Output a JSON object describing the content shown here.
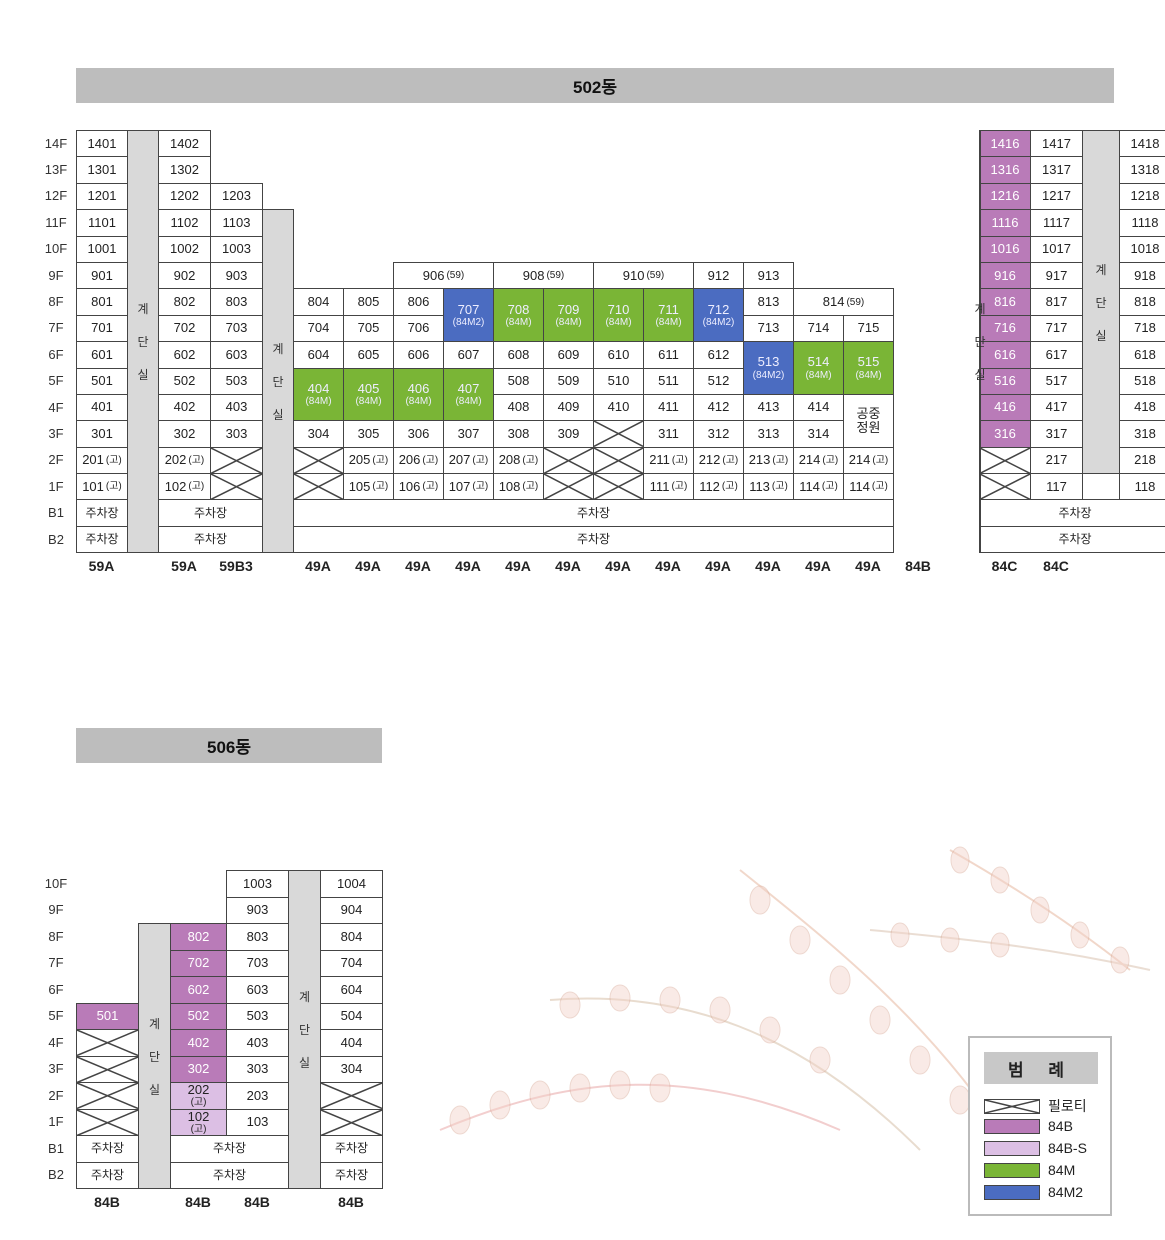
{
  "buildings": [
    {
      "id": "502",
      "title": "502동",
      "floors": [
        "14F",
        "13F",
        "12F",
        "11F",
        "10F",
        "9F",
        "8F",
        "7F",
        "6F",
        "5F",
        "4F",
        "3F",
        "2F",
        "1F",
        "B1",
        "B2"
      ],
      "types": [
        "59A",
        "59A",
        "59B3",
        "49A",
        "49A",
        "49A",
        "49A",
        "49A",
        "49A",
        "49A",
        "49A",
        "49A",
        "49A",
        "49A",
        "49A",
        "84B",
        "84C",
        "84C"
      ],
      "stair_label": [
        "계",
        "단",
        "실"
      ],
      "cells": [
        {
          "t": "1401",
          "g": "1/2/2"
        },
        {
          "t": "1402",
          "g": "1/4/2"
        },
        {
          "t": "1416",
          "g": "1/27/2",
          "c": "84B"
        },
        {
          "t": "1417",
          "g": "1/28/2"
        },
        {
          "t": "1418",
          "g": "1/30/2"
        },
        {
          "t": "1301",
          "g": "2/2/3"
        },
        {
          "t": "1302",
          "g": "2/4/3"
        },
        {
          "t": "1316",
          "g": "2/27/3",
          "c": "84B"
        },
        {
          "t": "1317",
          "g": "2/28/3"
        },
        {
          "t": "1318",
          "g": "2/30/3"
        },
        {
          "t": "1201",
          "g": "3/2/4"
        },
        {
          "t": "1202",
          "g": "3/4/4"
        },
        {
          "t": "1203",
          "g": "3/5/4"
        },
        {
          "t": "1216",
          "g": "3/27/4",
          "c": "84B"
        },
        {
          "t": "1217",
          "g": "3/28/4"
        },
        {
          "t": "1218",
          "g": "3/30/4"
        },
        {
          "t": "1101",
          "g": "4/2/5"
        },
        {
          "t": "1102",
          "g": "4/4/5"
        },
        {
          "t": "1103",
          "g": "4/5/5"
        },
        {
          "t": "1116",
          "g": "4/27/5",
          "c": "84B"
        },
        {
          "t": "1117",
          "g": "4/28/5"
        },
        {
          "t": "1118",
          "g": "4/30/5"
        },
        {
          "t": "1001",
          "g": "5/2/6"
        },
        {
          "t": "1002",
          "g": "5/4/6"
        },
        {
          "t": "1003",
          "g": "5/5/6"
        },
        {
          "t": "1016",
          "g": "5/27/6",
          "c": "84B"
        },
        {
          "t": "1017",
          "g": "5/28/6"
        },
        {
          "t": "1018",
          "g": "5/30/6"
        },
        {
          "t": "901",
          "g": "6/2/7"
        },
        {
          "t": "902",
          "g": "6/4/7"
        },
        {
          "t": "903",
          "g": "6/5/7"
        },
        {
          "t": "906",
          "s": "(59)",
          "g": "6/9/7/11"
        },
        {
          "t": "908",
          "s": "(59)",
          "g": "6/11/7/13"
        },
        {
          "t": "910",
          "s": "(59)",
          "g": "6/13/7/15"
        },
        {
          "t": "912",
          "g": "6/15/7"
        },
        {
          "t": "913",
          "g": "6/16/7"
        },
        {
          "t": "916",
          "g": "6/27/7",
          "c": "84B"
        },
        {
          "t": "917",
          "g": "6/28/7"
        },
        {
          "t": "918",
          "g": "6/30/7"
        },
        {
          "t": "801",
          "g": "7/2/8"
        },
        {
          "t": "802",
          "g": "7/4/8"
        },
        {
          "t": "803",
          "g": "7/5/8"
        },
        {
          "t": "804",
          "g": "7/7/8"
        },
        {
          "t": "805",
          "g": "7/8/8"
        },
        {
          "t": "806",
          "g": "7/9/8"
        },
        {
          "t": "707",
          "s": "(84M2)",
          "g": "7/10/9",
          "c": "84M2"
        },
        {
          "t": "708",
          "s": "(84M)",
          "g": "7/11/9",
          "c": "84M"
        },
        {
          "t": "709",
          "s": "(84M)",
          "g": "7/12/9",
          "c": "84M"
        },
        {
          "t": "710",
          "s": "(84M)",
          "g": "7/13/9",
          "c": "84M"
        },
        {
          "t": "711",
          "s": "(84M)",
          "g": "7/14/9",
          "c": "84M"
        },
        {
          "t": "712",
          "s": "(84M2)",
          "g": "7/15/9",
          "c": "84M2"
        },
        {
          "t": "813",
          "g": "7/16/8"
        },
        {
          "t": "814",
          "s": "(59)",
          "g": "7/17/8/19"
        },
        {
          "t": "816",
          "g": "7/27/8",
          "c": "84B"
        },
        {
          "t": "817",
          "g": "7/28/8"
        },
        {
          "t": "818",
          "g": "7/30/8"
        },
        {
          "t": "701",
          "g": "8/2/9"
        },
        {
          "t": "702",
          "g": "8/4/9"
        },
        {
          "t": "703",
          "g": "8/5/9"
        },
        {
          "t": "704",
          "g": "8/7/9"
        },
        {
          "t": "705",
          "g": "8/8/9"
        },
        {
          "t": "706",
          "g": "8/9/9"
        },
        {
          "t": "713",
          "g": "8/16/9"
        },
        {
          "t": "714",
          "g": "8/17/9"
        },
        {
          "t": "715",
          "g": "8/18/9"
        },
        {
          "t": "716",
          "g": "8/27/9",
          "c": "84B"
        },
        {
          "t": "717",
          "g": "8/28/9"
        },
        {
          "t": "718",
          "g": "8/30/9"
        },
        {
          "t": "601",
          "g": "9/2/10"
        },
        {
          "t": "602",
          "g": "9/4/10"
        },
        {
          "t": "603",
          "g": "9/5/10"
        },
        {
          "t": "604",
          "g": "9/7/10"
        },
        {
          "t": "605",
          "g": "9/8/10"
        },
        {
          "t": "606",
          "g": "9/9/10"
        },
        {
          "t": "607",
          "g": "9/10/10"
        },
        {
          "t": "608",
          "g": "9/11/10"
        },
        {
          "t": "609",
          "g": "9/12/10"
        },
        {
          "t": "610",
          "g": "9/13/10"
        },
        {
          "t": "611",
          "g": "9/14/10"
        },
        {
          "t": "612",
          "g": "9/15/10"
        },
        {
          "t": "513",
          "s": "(84M2)",
          "g": "9/16/11",
          "c": "84M2"
        },
        {
          "t": "514",
          "s": "(84M)",
          "g": "9/17/11",
          "c": "84M"
        },
        {
          "t": "515",
          "s": "(84M)",
          "g": "9/18/11",
          "c": "84M"
        },
        {
          "t": "616",
          "g": "9/27/10",
          "c": "84B"
        },
        {
          "t": "617",
          "g": "9/28/10"
        },
        {
          "t": "618",
          "g": "9/30/10"
        },
        {
          "t": "501",
          "g": "10/2/11"
        },
        {
          "t": "502",
          "g": "10/4/11"
        },
        {
          "t": "503",
          "g": "10/5/11"
        },
        {
          "t": "404",
          "s": "(84M)",
          "g": "10/7/12",
          "c": "84M"
        },
        {
          "t": "405",
          "s": "(84M)",
          "g": "10/8/12",
          "c": "84M"
        },
        {
          "t": "406",
          "s": "(84M)",
          "g": "10/9/12",
          "c": "84M"
        },
        {
          "t": "407",
          "s": "(84M)",
          "g": "10/10/12",
          "c": "84M"
        },
        {
          "t": "508",
          "g": "10/11/11"
        },
        {
          "t": "509",
          "g": "10/12/11"
        },
        {
          "t": "510",
          "g": "10/13/11"
        },
        {
          "t": "511",
          "g": "10/14/11"
        },
        {
          "t": "512",
          "g": "10/15/11"
        },
        {
          "t": "516",
          "g": "10/27/11",
          "c": "84B"
        },
        {
          "t": "517",
          "g": "10/28/11"
        },
        {
          "t": "518",
          "g": "10/30/11"
        },
        {
          "t": "401",
          "g": "11/2/12"
        },
        {
          "t": "402",
          "g": "11/4/12"
        },
        {
          "t": "403",
          "g": "11/5/12"
        },
        {
          "t": "408",
          "g": "11/11/12"
        },
        {
          "t": "409",
          "g": "11/12/12"
        },
        {
          "t": "410",
          "g": "11/13/12"
        },
        {
          "t": "411",
          "g": "11/14/12"
        },
        {
          "t": "412",
          "g": "11/15/12"
        },
        {
          "t": "413",
          "g": "11/16/12"
        },
        {
          "t": "414",
          "g": "11/17/12"
        },
        {
          "t": "공중",
          "s2": "정원",
          "g": "11/18/13"
        },
        {
          "t": "416",
          "g": "11/27/12",
          "c": "84B"
        },
        {
          "t": "417",
          "g": "11/28/12"
        },
        {
          "t": "418",
          "g": "11/30/12"
        },
        {
          "t": "301",
          "g": "12/2/13"
        },
        {
          "t": "302",
          "g": "12/4/13"
        },
        {
          "t": "303",
          "g": "12/5/13"
        },
        {
          "t": "304",
          "g": "12/7/13"
        },
        {
          "t": "305",
          "g": "12/8/13"
        },
        {
          "t": "306",
          "g": "12/9/13"
        },
        {
          "t": "307",
          "g": "12/10/13"
        },
        {
          "t": "308",
          "g": "12/11/13"
        },
        {
          "t": "309",
          "g": "12/12/13"
        },
        {
          "p": true,
          "g": "12/13/13"
        },
        {
          "t": "311",
          "g": "12/14/13"
        },
        {
          "t": "312",
          "g": "12/15/13"
        },
        {
          "t": "313",
          "g": "12/16/13"
        },
        {
          "t": "314",
          "g": "12/17/13"
        },
        {
          "t": "316",
          "g": "12/27/13",
          "c": "84B"
        },
        {
          "t": "317",
          "g": "12/28/13"
        },
        {
          "t": "318",
          "g": "12/30/13"
        },
        {
          "t": "201",
          "s": "(고)",
          "g": "13/2/14"
        },
        {
          "t": "202",
          "s": "(고)",
          "g": "13/4/14"
        },
        {
          "p": true,
          "g": "13/5/14"
        },
        {
          "p": true,
          "g": "13/7/14"
        },
        {
          "t": "205",
          "s": "(고)",
          "g": "13/8/14"
        },
        {
          "t": "206",
          "s": "(고)",
          "g": "13/9/14"
        },
        {
          "t": "207",
          "s": "(고)",
          "g": "13/10/14"
        },
        {
          "t": "208",
          "s": "(고)",
          "g": "13/11/14"
        },
        {
          "p": true,
          "g": "13/12/14"
        },
        {
          "p": true,
          "g": "13/13/14"
        },
        {
          "t": "211",
          "s": "(고)",
          "g": "13/14/14"
        },
        {
          "t": "212",
          "s": "(고)",
          "g": "13/15/14"
        },
        {
          "t": "213",
          "s": "(고)",
          "g": "13/16/14"
        },
        {
          "t": "214",
          "s": "(고)",
          "g": "13/17/14"
        },
        {
          "t": "214",
          "s": "(고)",
          "g": "13/18/14"
        },
        {
          "p": true,
          "g": "13/27/14"
        },
        {
          "t": "217",
          "g": "13/28/14"
        },
        {
          "t": "218",
          "g": "13/30/14"
        },
        {
          "t": "101",
          "s": "(고)",
          "g": "14/2/15"
        },
        {
          "t": "102",
          "s": "(고)",
          "g": "14/4/15"
        },
        {
          "p": true,
          "g": "14/5/15"
        },
        {
          "p": true,
          "g": "14/7/15"
        },
        {
          "t": "105",
          "s": "(고)",
          "g": "14/8/15"
        },
        {
          "t": "106",
          "s": "(고)",
          "g": "14/9/15"
        },
        {
          "t": "107",
          "s": "(고)",
          "g": "14/10/15"
        },
        {
          "t": "108",
          "s": "(고)",
          "g": "14/11/15"
        },
        {
          "p": true,
          "g": "14/12/15"
        },
        {
          "p": true,
          "g": "14/13/15"
        },
        {
          "t": "111",
          "s": "(고)",
          "g": "14/14/15"
        },
        {
          "t": "112",
          "s": "(고)",
          "g": "14/15/15"
        },
        {
          "t": "113",
          "s": "(고)",
          "g": "14/16/15"
        },
        {
          "t": "114",
          "s": "(고)",
          "g": "14/17/15"
        },
        {
          "t": "114",
          "s": "(고)",
          "g": "14/18/15"
        },
        {
          "p": true,
          "g": "14/27/15"
        },
        {
          "t": "117",
          "g": "14/28/15"
        },
        {
          "t": "118",
          "g": "14/30/15"
        },
        {
          "t": "주차장",
          "n": true,
          "g": "15/2/16"
        },
        {
          "t": "주차장",
          "n": true,
          "g": "15/4/16/6"
        },
        {
          "t": "주차장",
          "n": true,
          "g": "15/7/16/19"
        },
        {
          "t": "주차장",
          "n": true,
          "g": "15/27/16/31"
        },
        {
          "t": "주차장",
          "n": true,
          "g": "16/2/17"
        },
        {
          "t": "주차장",
          "n": true,
          "g": "16/4/17/6"
        },
        {
          "t": "주차장",
          "n": true,
          "g": "16/7/17/19"
        },
        {
          "t": "주차장",
          "n": true,
          "g": "16/27/17/31"
        }
      ],
      "stairs": [
        "1/3/17",
        "4/6/17",
        "1/26/17",
        "1/29/14"
      ]
    },
    {
      "id": "506",
      "title": "506동",
      "floors": [
        "10F",
        "9F",
        "8F",
        "7F",
        "6F",
        "5F",
        "4F",
        "3F",
        "2F",
        "1F",
        "B1",
        "B2"
      ],
      "types": [
        "84B",
        "84B",
        "84B",
        "84B"
      ],
      "stair_label": [
        "계",
        "단",
        "실"
      ],
      "cells": [
        {
          "t": "1003",
          "g": "1/5/2"
        },
        {
          "t": "1004",
          "g": "1/7/2"
        },
        {
          "t": "903",
          "g": "2/5/3"
        },
        {
          "t": "904",
          "g": "2/7/3"
        },
        {
          "t": "802",
          "g": "3/4/4",
          "c": "84B"
        },
        {
          "t": "803",
          "g": "3/5/4"
        },
        {
          "t": "804",
          "g": "3/7/4"
        },
        {
          "t": "702",
          "g": "4/4/5",
          "c": "84B"
        },
        {
          "t": "703",
          "g": "4/5/5"
        },
        {
          "t": "704",
          "g": "4/7/5"
        },
        {
          "t": "602",
          "g": "5/4/6",
          "c": "84B"
        },
        {
          "t": "603",
          "g": "5/5/6"
        },
        {
          "t": "604",
          "g": "5/7/6"
        },
        {
          "t": "501",
          "g": "6/2/7",
          "c": "84B"
        },
        {
          "t": "502",
          "g": "6/4/7",
          "c": "84B"
        },
        {
          "t": "503",
          "g": "6/5/7"
        },
        {
          "t": "504",
          "g": "6/7/7"
        },
        {
          "p": true,
          "g": "7/2/8"
        },
        {
          "t": "402",
          "g": "7/4/8",
          "c": "84B"
        },
        {
          "t": "403",
          "g": "7/5/8"
        },
        {
          "t": "404",
          "g": "7/7/8"
        },
        {
          "p": true,
          "g": "8/2/9"
        },
        {
          "t": "302",
          "g": "8/4/9",
          "c": "84B"
        },
        {
          "t": "303",
          "g": "8/5/9"
        },
        {
          "t": "304",
          "g": "8/7/9"
        },
        {
          "p": true,
          "g": "9/2/10"
        },
        {
          "t": "202",
          "s": "(고)",
          "g": "9/4/10",
          "c": "84BS"
        },
        {
          "t": "203",
          "g": "9/5/10"
        },
        {
          "p": true,
          "g": "9/7/10"
        },
        {
          "p": true,
          "g": "10/2/11"
        },
        {
          "t": "102",
          "s": "(고)",
          "g": "10/4/11",
          "c": "84BS"
        },
        {
          "t": "103",
          "g": "10/5/11"
        },
        {
          "p": true,
          "g": "10/7/11"
        },
        {
          "t": "주차장",
          "n": true,
          "g": "11/2/12"
        },
        {
          "t": "주차장",
          "n": true,
          "g": "11/4/12/6"
        },
        {
          "t": "주차장",
          "n": true,
          "g": "11/7/12"
        },
        {
          "t": "주차장",
          "n": true,
          "g": "12/2/13"
        },
        {
          "t": "주차장",
          "n": true,
          "g": "12/4/13/6"
        },
        {
          "t": "주차장",
          "n": true,
          "g": "12/7/13"
        }
      ],
      "stairs": [
        "3/3/13",
        "1/6/13"
      ]
    }
  ],
  "legend": {
    "title": "범 례",
    "items": [
      {
        "label": "필로티",
        "kind": "piloti"
      },
      {
        "label": "84B",
        "kind": "84B"
      },
      {
        "label": "84B-S",
        "kind": "84BS"
      },
      {
        "label": "84M",
        "kind": "84M"
      },
      {
        "label": "84M2",
        "kind": "84M2"
      }
    ]
  },
  "colors": {
    "84B": "#b97bb8",
    "84BS": "#dcbfe4",
    "84M": "#7ab536",
    "84M2": "#4b6cc1",
    "stair": "#d9d9d9",
    "title_bar": "#bdbdbd"
  }
}
